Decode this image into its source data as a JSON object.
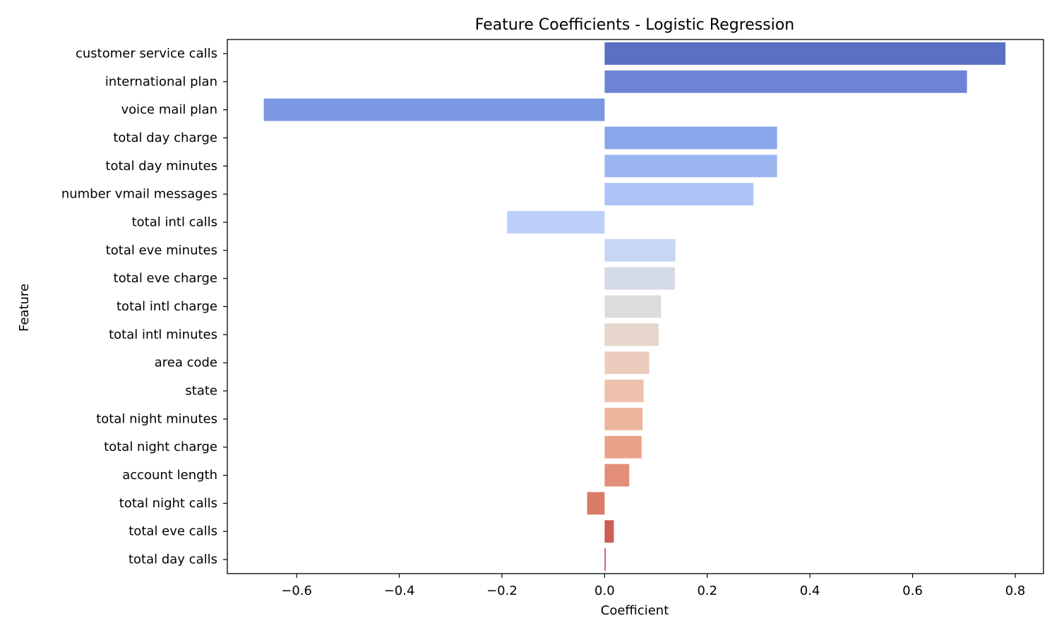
{
  "chart_data": {
    "type": "bar",
    "orientation": "horizontal",
    "title": "Feature Coefficients - Logistic Regression",
    "xlabel": "Coefficient",
    "ylabel": "Feature",
    "xlim": [
      -0.735,
      0.855
    ],
    "xticks": [
      -0.6,
      -0.4,
      -0.2,
      0.0,
      0.2,
      0.4,
      0.6,
      0.8
    ],
    "xtick_labels": [
      "−0.6",
      "−0.4",
      "−0.2",
      "0.0",
      "0.2",
      "0.4",
      "0.6",
      "0.8"
    ],
    "grid": false,
    "categories": [
      "customer service calls",
      "international plan",
      "voice mail plan",
      "total day charge",
      "total day minutes",
      "number vmail messages",
      "total intl calls",
      "total eve minutes",
      "total eve charge",
      "total intl charge",
      "total intl minutes",
      "area code",
      "state",
      "total night minutes",
      "total night charge",
      "account length",
      "total night calls",
      "total eve calls",
      "total day calls"
    ],
    "values": [
      0.781,
      0.706,
      -0.664,
      0.336,
      0.336,
      0.29,
      -0.19,
      0.138,
      0.137,
      0.11,
      0.105,
      0.087,
      0.076,
      0.074,
      0.072,
      0.048,
      -0.034,
      0.018,
      0.002
    ],
    "colors": [
      "#5a70c4",
      "#6d84d4",
      "#7b97e1",
      "#8ba6ea",
      "#9cb6f2",
      "#adc4f6",
      "#bccefa",
      "#c9d6f3",
      "#d5dbe6",
      "#dddcdb",
      "#e5d5cb",
      "#ebccbd",
      "#eec1ac",
      "#edb59c",
      "#e9a289",
      "#e38f78",
      "#da7a67",
      "#cc5e55",
      "#b4384a"
    ]
  }
}
